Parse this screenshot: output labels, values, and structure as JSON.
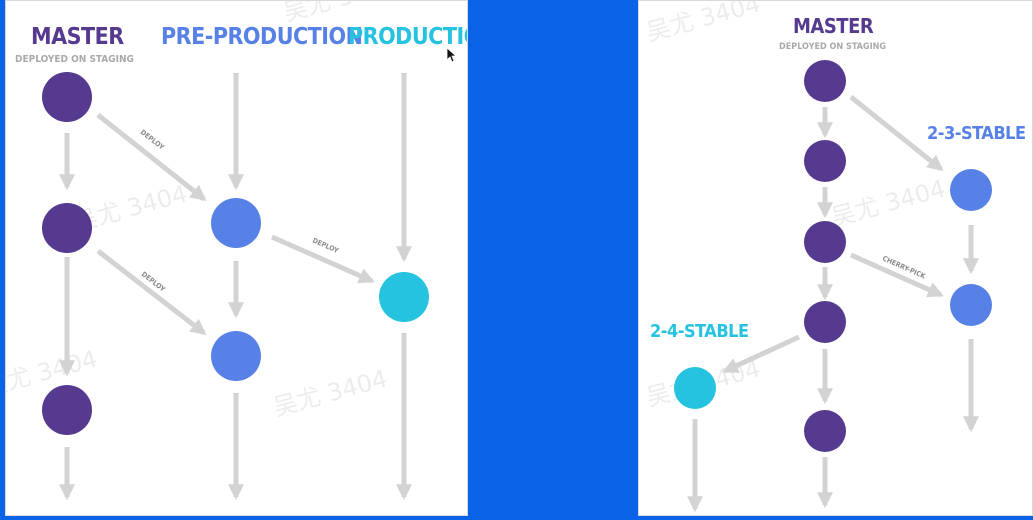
{
  "colors": {
    "background": "#0a63e6",
    "master": "#553a8f",
    "pre_production": "#5781e6",
    "production": "#25c3e0",
    "arrow": "#d3d3d3"
  },
  "left_diagram": {
    "master_title": "MASTER",
    "master_subtitle": "DEPLOYED ON STAGING",
    "preprod_title": "PRE-PRODUCTION",
    "prod_title": "PRODUCTION",
    "deploy_label_1": "DEPLOY",
    "deploy_label_2": "DEPLOY",
    "deploy_label_3": "DEPLOY"
  },
  "right_diagram": {
    "master_title": "MASTER",
    "master_subtitle": "DEPLOYED ON STAGING",
    "stable_23": "2-3-STABLE",
    "stable_24": "2-4-STABLE",
    "cherry_pick_label": "CHERRY-PICK"
  },
  "watermark": "吴尤 3404"
}
